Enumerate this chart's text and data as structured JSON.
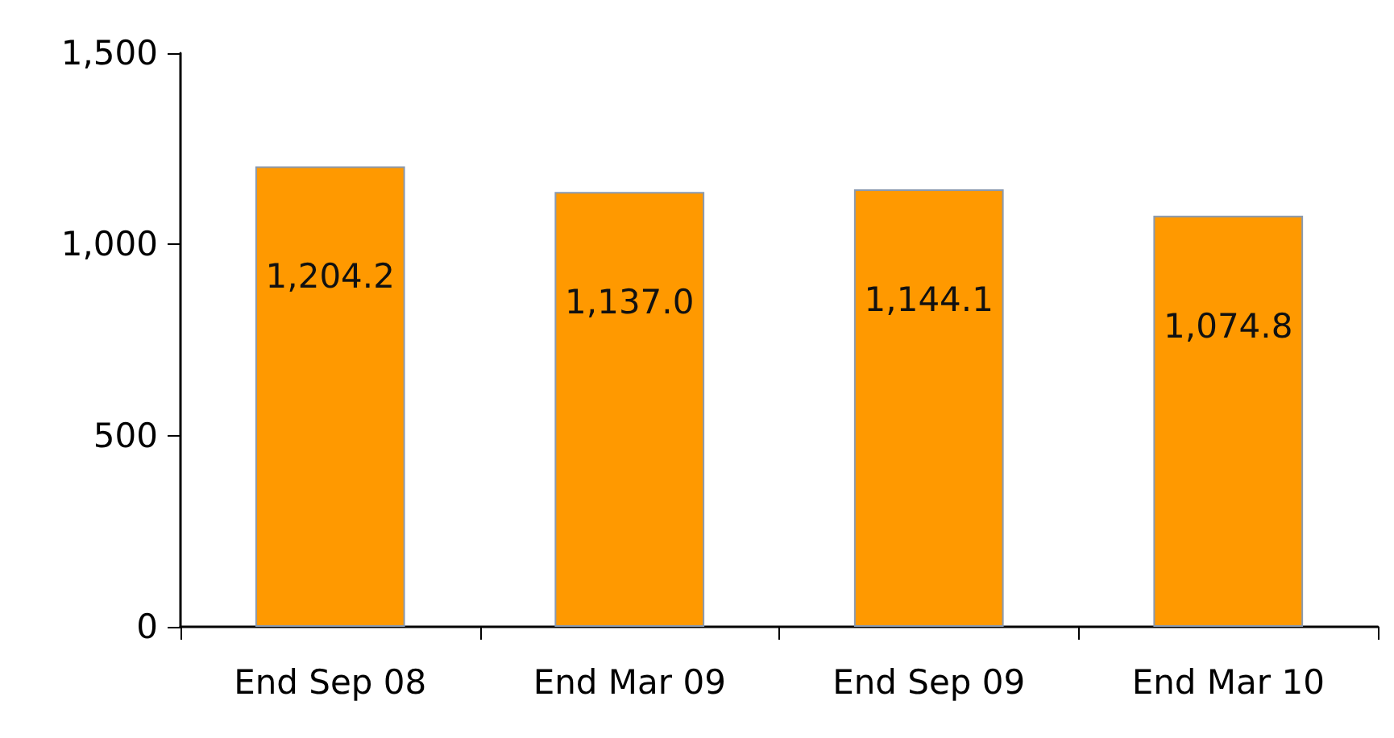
{
  "chart_data": {
    "type": "bar",
    "categories": [
      "End Sep 08",
      "End Mar 09",
      "End Sep 09",
      "End Mar 10"
    ],
    "values": [
      1204.2,
      1137.0,
      1144.1,
      1074.8
    ],
    "color": "#ff9900",
    "value_labels": [
      "1,204.2",
      "1,137.0",
      "1,144.1",
      "1,074.8"
    ],
    "ylim": [
      0,
      1500
    ],
    "yticks": [
      {
        "value": 0,
        "label": "0"
      },
      {
        "value": 500,
        "label": "500"
      },
      {
        "value": 1000,
        "label": "1,000"
      },
      {
        "value": 1500,
        "label": "1,500"
      }
    ],
    "grid": false
  }
}
